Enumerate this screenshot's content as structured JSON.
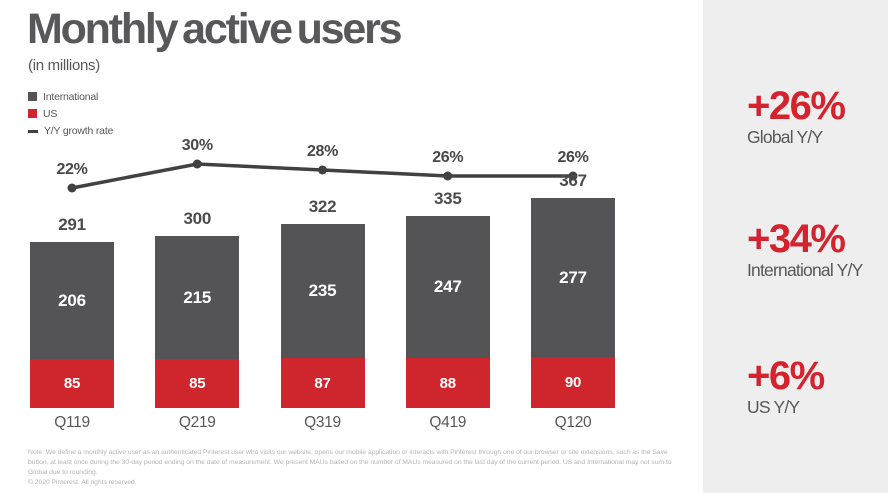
{
  "title": "Monthly active users",
  "subtitle": "(in millions)",
  "legend": [
    {
      "label": "International",
      "swatch": "square-darkgray",
      "icon": "darkgray-square-icon"
    },
    {
      "label": "US",
      "swatch": "square-red",
      "icon": "red-square-icon"
    },
    {
      "label": "Y/Y growth rate",
      "swatch": "dash",
      "icon": "line-dash-icon"
    }
  ],
  "chart_data": {
    "type": "bar",
    "subtype": "stacked-bar-with-line",
    "title": "Monthly active users",
    "units": "(in millions)",
    "categories": [
      "Q119",
      "Q219",
      "Q319",
      "Q419",
      "Q120"
    ],
    "series": [
      {
        "name": "US",
        "values": [
          85,
          85,
          87,
          88,
          90
        ],
        "color": "#cf262d"
      },
      {
        "name": "International",
        "values": [
          206,
          215,
          235,
          247,
          277
        ],
        "color": "#545457"
      }
    ],
    "totals": [
      291,
      300,
      322,
      335,
      367
    ],
    "line_series": {
      "name": "Y/Y growth rate",
      "values_pct": [
        22,
        30,
        28,
        26,
        26
      ],
      "labels": [
        "22%",
        "30%",
        "28%",
        "26%",
        "26%"
      ],
      "color": "#414043"
    },
    "legend_position": "top-left",
    "grid": false,
    "value_labels": "shown-on-bars-and-above"
  },
  "stats": [
    {
      "value": "+26%",
      "label": "Global Y/Y"
    },
    {
      "value": "+34%",
      "label": "International Y/Y"
    },
    {
      "value": "+6%",
      "label": "US Y/Y"
    }
  ],
  "footnote": {
    "note": "Note: We define a monthly active user as an authenticated Pinterest user who visits our website, opens our mobile application or interacts with Pinterest through one of our browser or site extensions, such as the Save button, at least once during the 30-day period ending on the date of measurement. We present MAUs based on the number of MAUs measured on the last day of the current period. US and International may not sum to Global due to rounding.",
    "copyright": "© 2020 Pinterest. All rights reserved."
  },
  "colors": {
    "background": "#ffffff",
    "bar_international_gray": "#545457",
    "bar_us_red": "#cf262d",
    "growth_line_gray": "#414043",
    "text_gray": "#58585a",
    "stat_red": "#d5232e",
    "panel_background": "#eeeeef",
    "footnote_gray": "#b5b5b7"
  }
}
